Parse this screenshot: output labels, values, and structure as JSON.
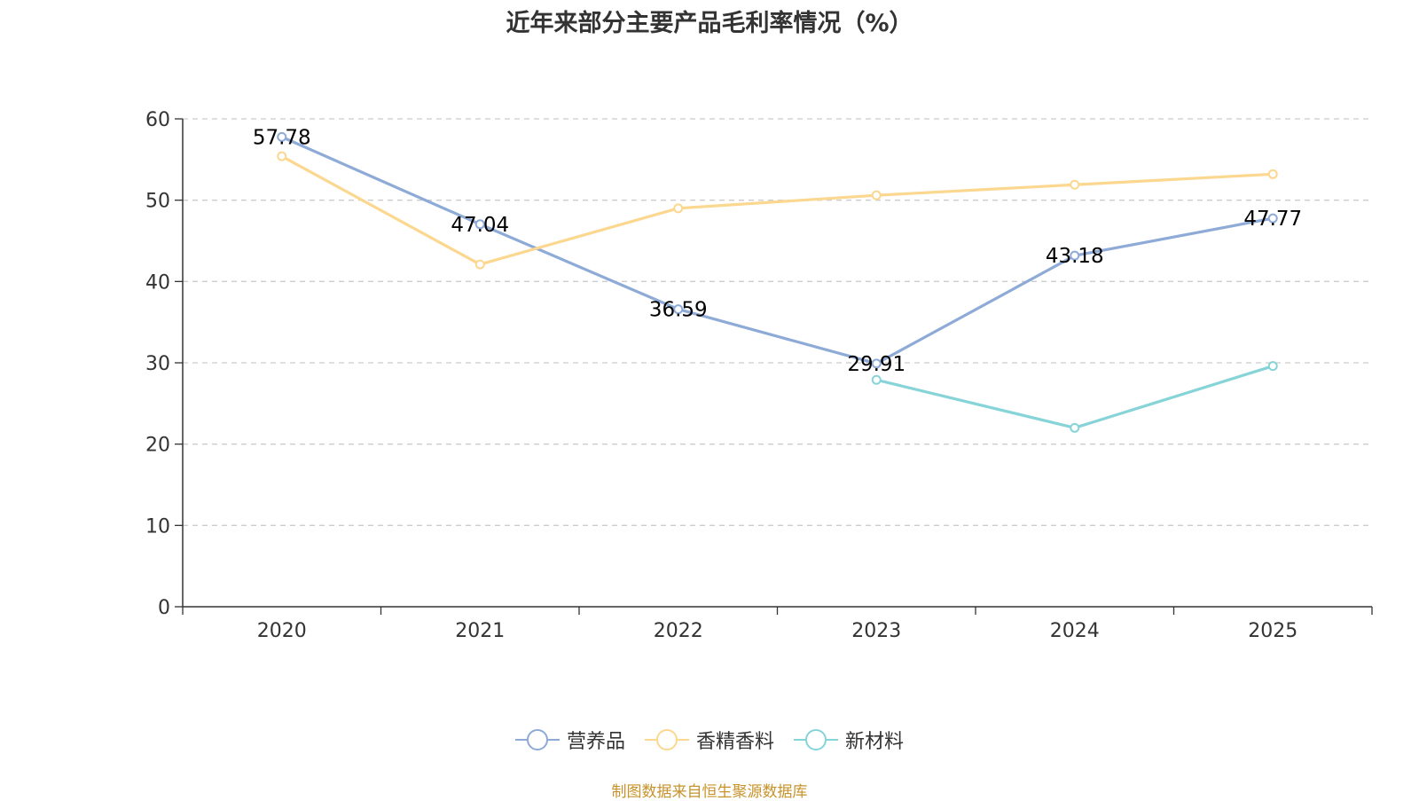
{
  "chart_data": {
    "type": "line",
    "title": "近年来部分主要产品毛利率情况（%）",
    "categories": [
      "2020",
      "2021",
      "2022",
      "2023",
      "2024",
      "2025"
    ],
    "ylim": [
      0,
      60
    ],
    "yticks": [
      0,
      10,
      20,
      30,
      40,
      50,
      60
    ],
    "grid": true,
    "legend_position": "bottom",
    "series": [
      {
        "name": "营养品",
        "color": "#8eaad7",
        "values": [
          57.78,
          47.04,
          36.59,
          29.91,
          43.18,
          47.77
        ],
        "show_labels": true
      },
      {
        "name": "香精香料",
        "color": "#fbd78f",
        "values": [
          55.4,
          42.1,
          49.0,
          50.6,
          51.9,
          53.2
        ],
        "show_labels": false
      },
      {
        "name": "新材料",
        "color": "#86d4d8",
        "values": [
          null,
          null,
          null,
          27.9,
          22.0,
          29.6
        ],
        "show_labels": false
      }
    ],
    "source": "制图数据来自恒生聚源数据库"
  }
}
